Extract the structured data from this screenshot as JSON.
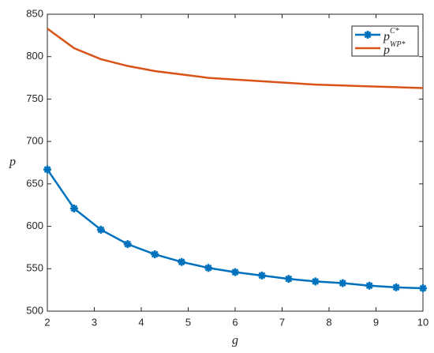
{
  "chart_data": {
    "type": "line",
    "x_label": "g",
    "y_label": "p",
    "x": [
      2,
      2.57,
      3.14,
      3.71,
      4.29,
      4.86,
      5.43,
      6,
      6.57,
      7.14,
      7.71,
      8.29,
      8.86,
      9.43,
      10
    ],
    "series": [
      {
        "name": "p",
        "name_superscript": "C*",
        "color": "#0072bd",
        "markers": true,
        "values": [
          667,
          621,
          596,
          579,
          567,
          558,
          551,
          546,
          542,
          538,
          535,
          533,
          530,
          528,
          527
        ]
      },
      {
        "name": "p",
        "name_superscript": "WP*",
        "color": "#d95319",
        "markers": false,
        "values": [
          833,
          810,
          797,
          789,
          783,
          779,
          775,
          773,
          771,
          769,
          767,
          766,
          765,
          764,
          763
        ]
      }
    ],
    "xlim": [
      2,
      10
    ],
    "xticks": [
      2,
      3,
      4,
      5,
      6,
      7,
      8,
      9,
      10
    ],
    "ylim": [
      500,
      850
    ],
    "yticks": [
      500,
      550,
      600,
      650,
      700,
      750,
      800,
      850
    ],
    "grid": false,
    "legend": "upper right"
  }
}
